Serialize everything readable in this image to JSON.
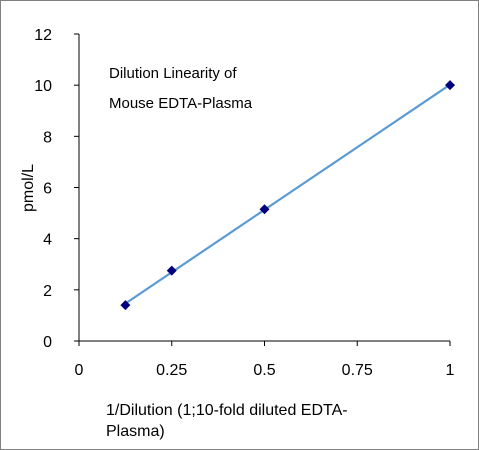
{
  "chart_data": {
    "type": "scatter",
    "annotation_lines": [
      "Dilution Linearity of",
      "Mouse EDTA-Plasma"
    ],
    "xlabel_lines": [
      "1/Dilution (1;10-fold diluted EDTA-",
      "Plasma)"
    ],
    "ylabel": "pmol/L",
    "xlim": [
      0,
      1
    ],
    "ylim": [
      0,
      12
    ],
    "x_ticks": [
      "0",
      "0.25",
      "0.5",
      "0.75",
      "1"
    ],
    "x_tick_values": [
      0,
      0.25,
      0.5,
      0.75,
      1
    ],
    "y_ticks": [
      "0",
      "2",
      "4",
      "6",
      "8",
      "10",
      "12"
    ],
    "y_tick_values": [
      0,
      2,
      4,
      6,
      8,
      10,
      12
    ],
    "grid": false,
    "series": [
      {
        "x": [
          0.125,
          0.25,
          0.5,
          1
        ],
        "y": [
          1.4,
          2.75,
          5.15,
          10.0
        ],
        "marker": "diamond",
        "marker_color": "#00007f",
        "trendline": true,
        "trendline_color": "#5b9bd5"
      }
    ]
  }
}
